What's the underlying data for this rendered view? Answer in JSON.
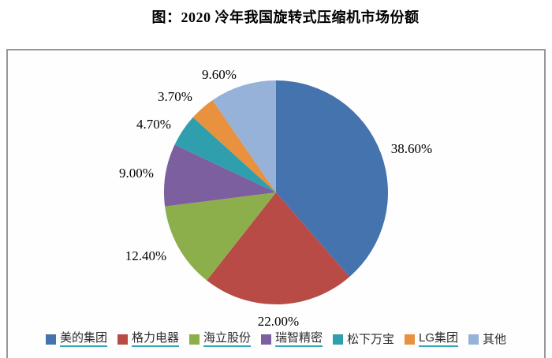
{
  "page": {
    "title": "图：2020 冷年我国旋转式压缩机市场份额"
  },
  "chart_data": {
    "type": "pie",
    "title": "图：2020 冷年我国旋转式压缩机市场份额",
    "legend_position": "bottom",
    "start_angle_deg": 0,
    "direction": "clockwise",
    "label_format": "percent-outside",
    "link_underline_color": "#2FA8B5",
    "slices": [
      {
        "label": "美的集团",
        "value": 38.6,
        "display": "38.60%",
        "color": "#4573AD",
        "legend_link": true
      },
      {
        "label": "格力电器",
        "value": 22.0,
        "display": "22.00%",
        "color": "#B94B46",
        "legend_link": true
      },
      {
        "label": "海立股份",
        "value": 12.4,
        "display": "12.40%",
        "color": "#8CAF4B",
        "legend_link": true
      },
      {
        "label": "瑞智精密",
        "value": 9.0,
        "display": "9.00%",
        "color": "#7C5F9F",
        "legend_link": true
      },
      {
        "label": "松下万宝",
        "value": 4.7,
        "display": "4.70%",
        "color": "#2F9EAD",
        "legend_link": false
      },
      {
        "label": "LG集团",
        "value": 3.7,
        "display": "3.70%",
        "color": "#E8913E",
        "legend_link": true
      },
      {
        "label": "其他",
        "value": 9.6,
        "display": "9.60%",
        "color": "#96B2D8",
        "legend_link": false
      }
    ]
  }
}
